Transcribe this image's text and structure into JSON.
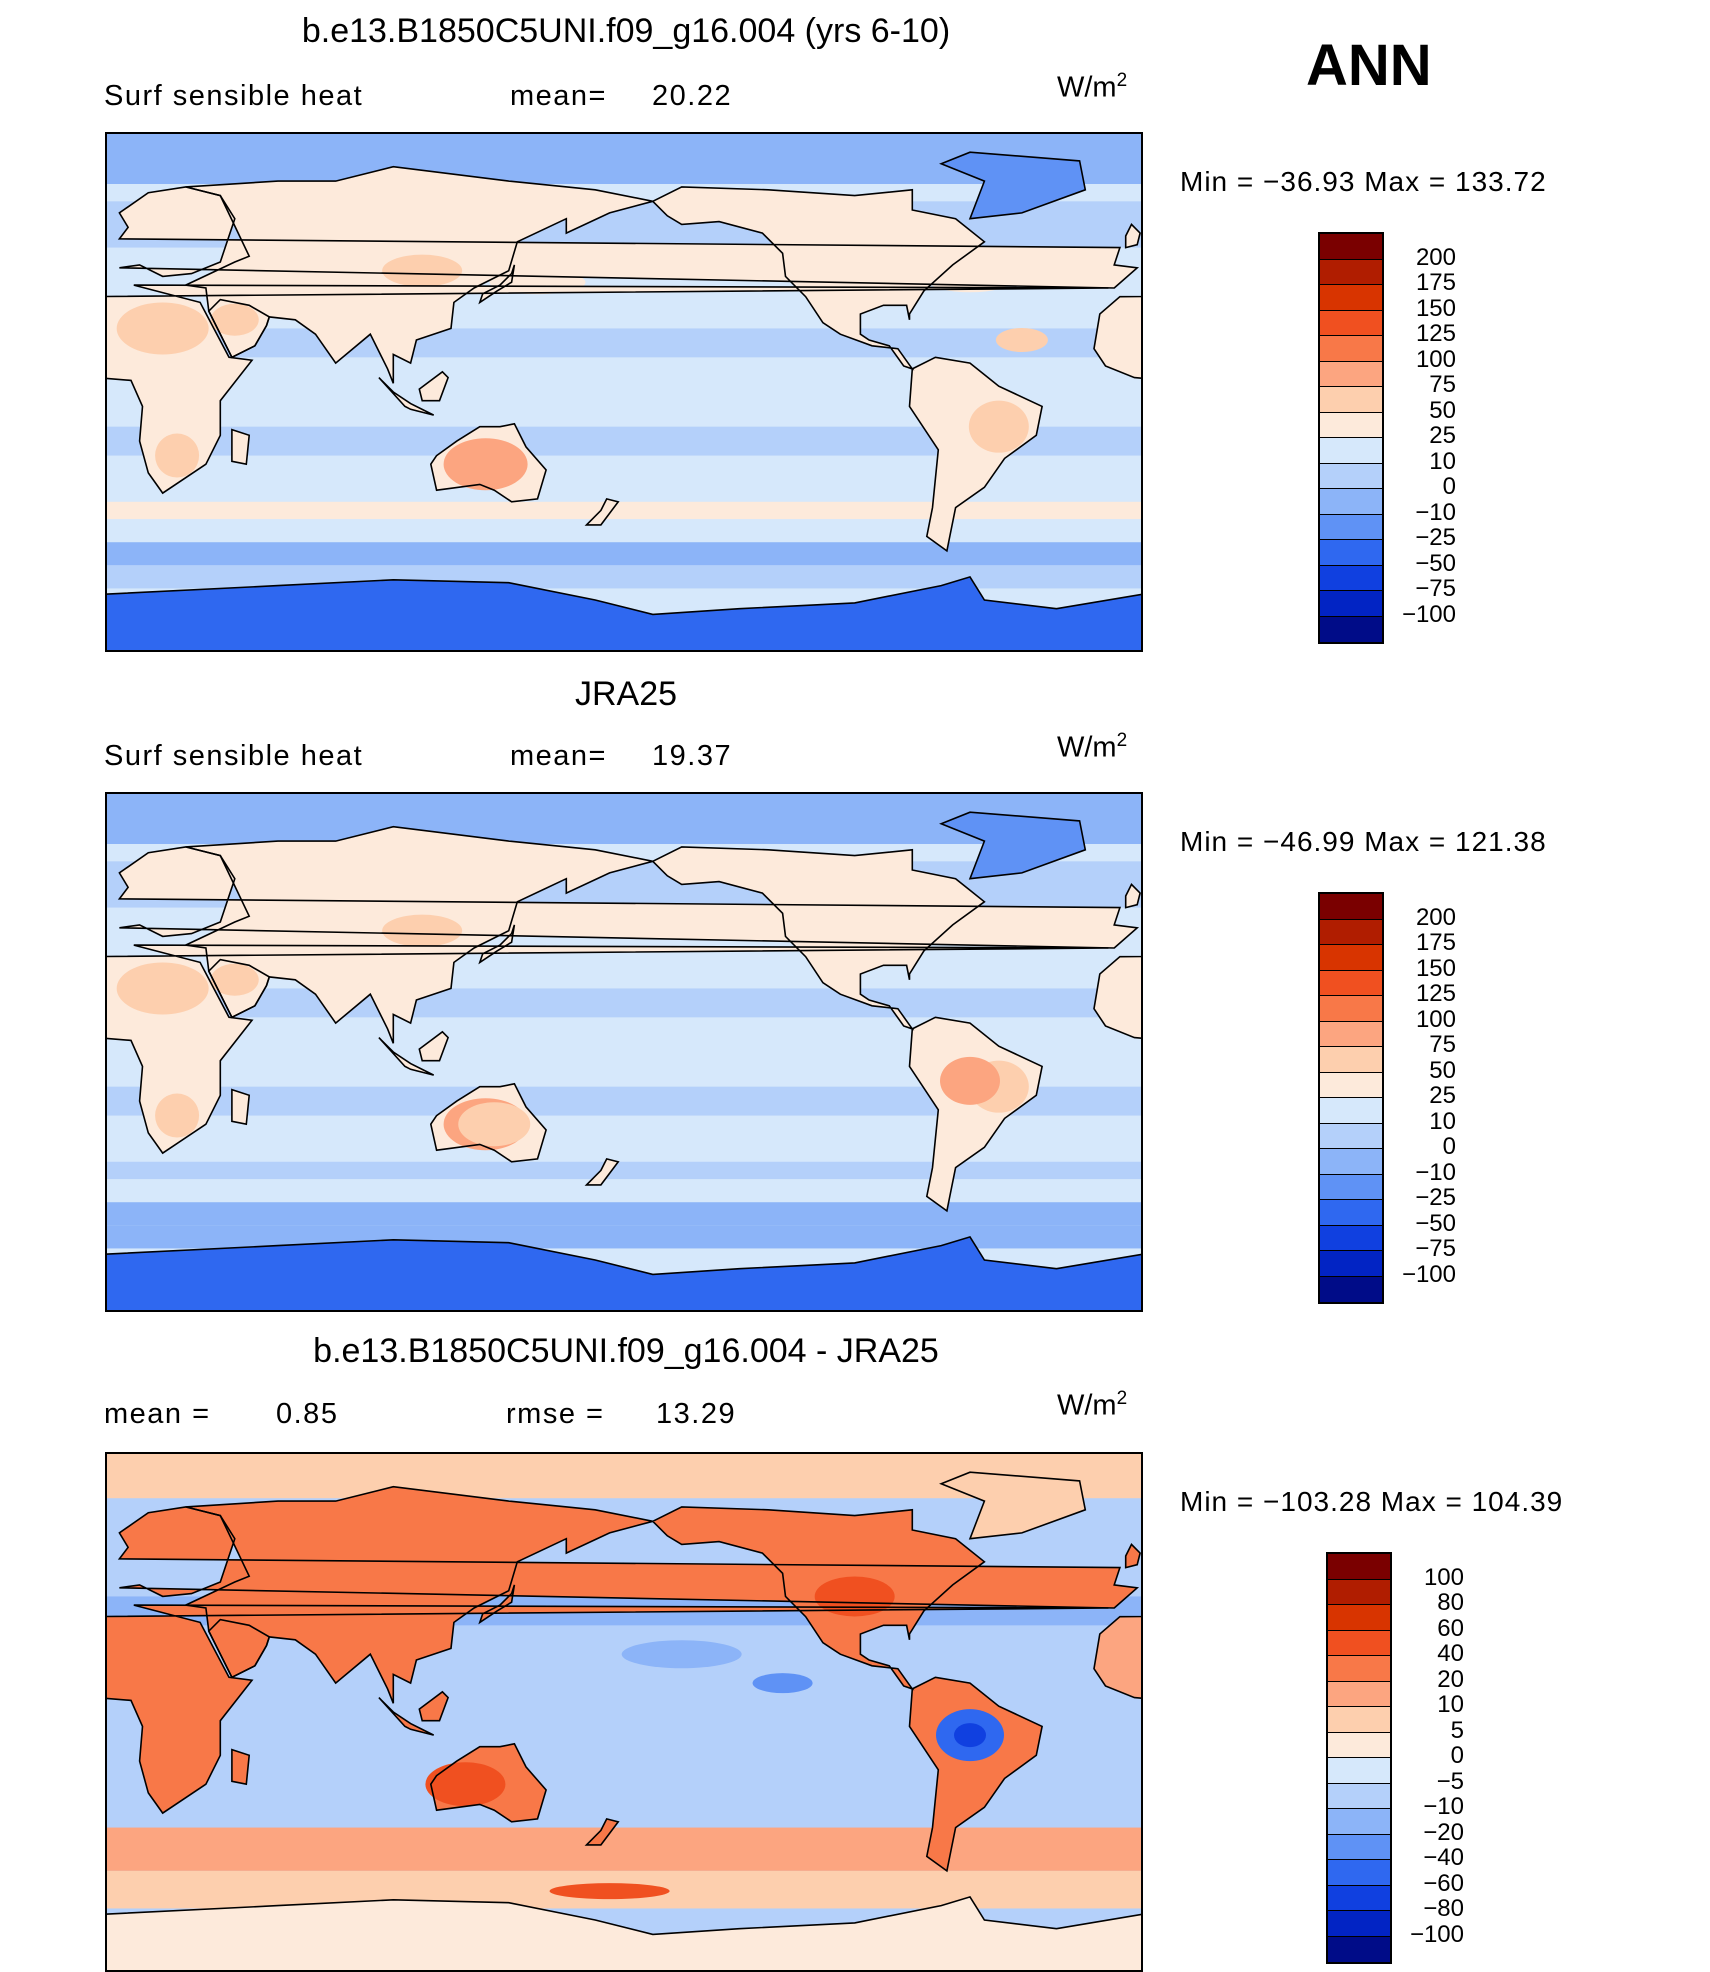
{
  "season": "ANN",
  "units_base": "W/m",
  "units_exp": "2",
  "panels": [
    {
      "title": "b.e13.B1850C5UNI.f09_g16.004 (yrs 6-10)",
      "variable": "Surf  sensible  heat",
      "stat_left": "",
      "stat1_label": "mean=",
      "stat1_value": "20.22",
      "min_label": "Min  =  −36.93  Max  =  133.72",
      "field": "model"
    },
    {
      "title": "JRA25",
      "variable": "Surf  sensible  heat",
      "stat_left": "",
      "stat1_label": "mean=",
      "stat1_value": "19.37",
      "min_label": "Min  =  −46.99  Max  =  121.38",
      "field": "obs"
    },
    {
      "title": "b.e13.B1850C5UNI.f09_g16.004 - JRA25",
      "variable": "mean  =",
      "stat_left": "0.85",
      "stat1_label": "rmse  =",
      "stat1_value": "13.29",
      "min_label": "Min  =  −103.28  Max  =  104.39",
      "field": "diff"
    }
  ],
  "colorbar_abs": {
    "levels": [
      "200",
      "175",
      "150",
      "125",
      "100",
      "75",
      "50",
      "25",
      "10",
      "0",
      "−10",
      "−25",
      "−50",
      "−75",
      "−100"
    ],
    "colors": [
      "#7a0000",
      "#b01d00",
      "#d83400",
      "#f05020",
      "#f87848",
      "#fca580",
      "#fdcfae",
      "#fdeadb",
      "#d6e8fb",
      "#b4d0fa",
      "#8cb4f8",
      "#5f92f5",
      "#2f68f0",
      "#1040e0",
      "#0224c4",
      "#000c88"
    ]
  },
  "colorbar_diff": {
    "levels": [
      "100",
      "80",
      "60",
      "40",
      "20",
      "10",
      "5",
      "0",
      "−5",
      "−10",
      "−20",
      "−40",
      "−60",
      "−80",
      "−100"
    ],
    "colors": [
      "#7a0000",
      "#b01d00",
      "#d83400",
      "#f05020",
      "#f87848",
      "#fca580",
      "#fdcfae",
      "#fdeadb",
      "#d6e8fb",
      "#b4d0fa",
      "#8cb4f8",
      "#5f92f5",
      "#2f68f0",
      "#1040e0",
      "#0224c4",
      "#000c88"
    ]
  }
}
